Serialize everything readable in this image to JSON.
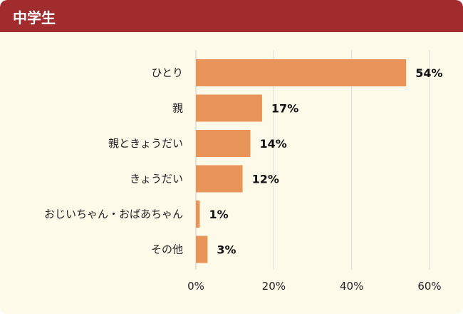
{
  "header": {
    "title": "中学生"
  },
  "colors": {
    "header": "#a12c2d",
    "background": "#fdfaea",
    "bar": "#e9955a",
    "grid": "#dcdcdc"
  },
  "chart_data": {
    "type": "bar",
    "orientation": "horizontal",
    "categories": [
      "ひとり",
      "親",
      "親ときょうだい",
      "きょうだい",
      "おじいちゃん・おばあちゃん",
      "その他"
    ],
    "values": [
      54,
      17,
      14,
      12,
      1,
      3
    ],
    "value_labels": [
      "54%",
      "17%",
      "14%",
      "12%",
      "1%",
      "3%"
    ],
    "xlim": [
      0,
      60
    ],
    "xticks": [
      0,
      20,
      40,
      60
    ],
    "xtick_labels": [
      "0%",
      "20%",
      "40%",
      "60%"
    ],
    "grid": true,
    "title": "",
    "xlabel": "",
    "ylabel": ""
  }
}
